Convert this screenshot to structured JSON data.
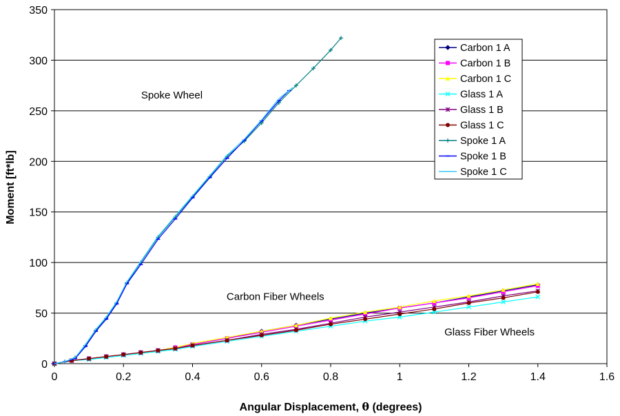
{
  "chart_data": {
    "type": "line",
    "title": "",
    "xlabel_main": "Angular Displacement, ",
    "xlabel_symbol": "θ",
    "xlabel_unit": " (degrees)",
    "ylabel": "Moment [ft*lb]",
    "xlim": [
      0,
      1.6
    ],
    "ylim": [
      0,
      350
    ],
    "xticks": [
      "0",
      "0.2",
      "0.4",
      "0.6",
      "0.8",
      "1",
      "1.2",
      "1.4",
      "1.6"
    ],
    "yticks": [
      "0",
      "50",
      "100",
      "150",
      "200",
      "250",
      "300",
      "350"
    ],
    "grid": "horizontal",
    "legend_position": "top-right",
    "annotations": [
      {
        "text": "Spoke Wheel",
        "x": 0.34,
        "y": 262
      },
      {
        "text": "Carbon Fiber Wheels",
        "x": 0.64,
        "y": 63
      },
      {
        "text": "Glass Fiber Wheels",
        "x": 1.26,
        "y": 28
      }
    ],
    "series": [
      {
        "name": "Carbon 1 A",
        "color": "#000080",
        "marker": "diamond",
        "points": [
          [
            0,
            0
          ],
          [
            0.05,
            3
          ],
          [
            0.1,
            5
          ],
          [
            0.15,
            7
          ],
          [
            0.2,
            9
          ],
          [
            0.25,
            11
          ],
          [
            0.3,
            13
          ],
          [
            0.35,
            16
          ],
          [
            0.4,
            19
          ],
          [
            0.5,
            25
          ],
          [
            0.6,
            32
          ],
          [
            0.7,
            38
          ],
          [
            0.8,
            44
          ],
          [
            0.9,
            50
          ],
          [
            1.0,
            55
          ],
          [
            1.1,
            60
          ],
          [
            1.2,
            66
          ],
          [
            1.3,
            72
          ],
          [
            1.4,
            78
          ]
        ]
      },
      {
        "name": "Carbon 1 B",
        "color": "#ff00ff",
        "marker": "square",
        "points": [
          [
            0,
            0
          ],
          [
            0.05,
            3
          ],
          [
            0.1,
            5
          ],
          [
            0.15,
            7
          ],
          [
            0.2,
            9
          ],
          [
            0.25,
            11
          ],
          [
            0.3,
            13
          ],
          [
            0.35,
            16
          ],
          [
            0.4,
            19
          ],
          [
            0.5,
            25
          ],
          [
            0.6,
            31
          ],
          [
            0.7,
            37
          ],
          [
            0.8,
            43
          ],
          [
            0.9,
            49
          ],
          [
            1.0,
            55
          ],
          [
            1.1,
            60
          ],
          [
            1.2,
            65
          ],
          [
            1.3,
            71
          ],
          [
            1.4,
            77
          ]
        ]
      },
      {
        "name": "Carbon 1 C",
        "color": "#ffff00",
        "marker": "triangle",
        "points": [
          [
            0,
            0
          ],
          [
            0.05,
            3
          ],
          [
            0.1,
            5
          ],
          [
            0.15,
            7
          ],
          [
            0.2,
            9
          ],
          [
            0.25,
            11
          ],
          [
            0.3,
            13
          ],
          [
            0.35,
            16
          ],
          [
            0.4,
            20
          ],
          [
            0.5,
            26
          ],
          [
            0.6,
            32
          ],
          [
            0.7,
            38
          ],
          [
            0.8,
            45
          ],
          [
            0.9,
            51
          ],
          [
            1.0,
            56
          ],
          [
            1.1,
            62
          ],
          [
            1.2,
            67
          ],
          [
            1.3,
            73
          ],
          [
            1.4,
            79
          ]
        ]
      },
      {
        "name": "Glass 1 A",
        "color": "#00ffff",
        "marker": "x",
        "points": [
          [
            0,
            0
          ],
          [
            0.05,
            3
          ],
          [
            0.1,
            4
          ],
          [
            0.15,
            6
          ],
          [
            0.2,
            8
          ],
          [
            0.25,
            10
          ],
          [
            0.3,
            12
          ],
          [
            0.35,
            14
          ],
          [
            0.4,
            17
          ],
          [
            0.5,
            22
          ],
          [
            0.6,
            27
          ],
          [
            0.7,
            32
          ],
          [
            0.8,
            37
          ],
          [
            0.9,
            42
          ],
          [
            1.0,
            46
          ],
          [
            1.1,
            51
          ],
          [
            1.2,
            56
          ],
          [
            1.3,
            61
          ],
          [
            1.4,
            66
          ]
        ]
      },
      {
        "name": "Glass 1 B",
        "color": "#800080",
        "marker": "star",
        "points": [
          [
            0,
            0
          ],
          [
            0.05,
            3
          ],
          [
            0.1,
            5
          ],
          [
            0.15,
            7
          ],
          [
            0.2,
            9
          ],
          [
            0.25,
            11
          ],
          [
            0.3,
            13
          ],
          [
            0.35,
            15
          ],
          [
            0.4,
            18
          ],
          [
            0.5,
            23
          ],
          [
            0.6,
            29
          ],
          [
            0.7,
            34
          ],
          [
            0.8,
            40
          ],
          [
            0.9,
            46
          ],
          [
            1.0,
            51
          ],
          [
            1.1,
            56
          ],
          [
            1.2,
            61
          ],
          [
            1.3,
            67
          ],
          [
            1.4,
            72
          ]
        ]
      },
      {
        "name": "Glass 1 C",
        "color": "#800000",
        "marker": "circle",
        "points": [
          [
            0,
            0
          ],
          [
            0.05,
            3
          ],
          [
            0.1,
            5
          ],
          [
            0.15,
            7
          ],
          [
            0.2,
            9
          ],
          [
            0.25,
            11
          ],
          [
            0.3,
            13
          ],
          [
            0.35,
            15
          ],
          [
            0.4,
            18
          ],
          [
            0.5,
            23
          ],
          [
            0.6,
            28
          ],
          [
            0.7,
            33
          ],
          [
            0.8,
            39
          ],
          [
            0.9,
            44
          ],
          [
            1.0,
            49
          ],
          [
            1.1,
            54
          ],
          [
            1.2,
            60
          ],
          [
            1.3,
            65
          ],
          [
            1.4,
            71
          ]
        ]
      },
      {
        "name": "Spoke 1 A",
        "color": "#008080",
        "marker": "plus",
        "points": [
          [
            0,
            0
          ],
          [
            0.03,
            2
          ],
          [
            0.06,
            6
          ],
          [
            0.09,
            18
          ],
          [
            0.12,
            33
          ],
          [
            0.15,
            45
          ],
          [
            0.18,
            60
          ],
          [
            0.21,
            80
          ],
          [
            0.25,
            100
          ],
          [
            0.3,
            125
          ],
          [
            0.35,
            145
          ],
          [
            0.4,
            165
          ],
          [
            0.45,
            185
          ],
          [
            0.5,
            205
          ],
          [
            0.55,
            220
          ],
          [
            0.6,
            238
          ],
          [
            0.65,
            258
          ],
          [
            0.7,
            275
          ],
          [
            0.75,
            292
          ],
          [
            0.8,
            310
          ],
          [
            0.83,
            322
          ]
        ]
      },
      {
        "name": "Spoke 1 B",
        "color": "#0000ff",
        "marker": "dash",
        "points": [
          [
            0,
            0
          ],
          [
            0.03,
            2
          ],
          [
            0.06,
            5
          ],
          [
            0.09,
            17
          ],
          [
            0.12,
            32
          ],
          [
            0.15,
            44
          ],
          [
            0.18,
            59
          ],
          [
            0.21,
            79
          ],
          [
            0.25,
            98
          ],
          [
            0.3,
            123
          ],
          [
            0.35,
            143
          ],
          [
            0.4,
            164
          ],
          [
            0.45,
            184
          ],
          [
            0.5,
            203
          ],
          [
            0.55,
            221
          ],
          [
            0.6,
            240
          ],
          [
            0.65,
            260
          ],
          [
            0.68,
            270
          ]
        ]
      },
      {
        "name": "Spoke 1 C",
        "color": "#33ccff",
        "marker": "none",
        "points": [
          [
            0,
            0
          ],
          [
            0.03,
            2
          ],
          [
            0.06,
            6
          ],
          [
            0.09,
            19
          ],
          [
            0.12,
            34
          ],
          [
            0.15,
            46
          ],
          [
            0.18,
            61
          ],
          [
            0.21,
            81
          ],
          [
            0.25,
            101
          ],
          [
            0.3,
            126
          ],
          [
            0.35,
            146
          ],
          [
            0.4,
            166
          ],
          [
            0.45,
            186
          ],
          [
            0.5,
            206
          ],
          [
            0.55,
            222
          ],
          [
            0.6,
            241
          ],
          [
            0.65,
            262
          ],
          [
            0.69,
            273
          ]
        ]
      }
    ]
  }
}
